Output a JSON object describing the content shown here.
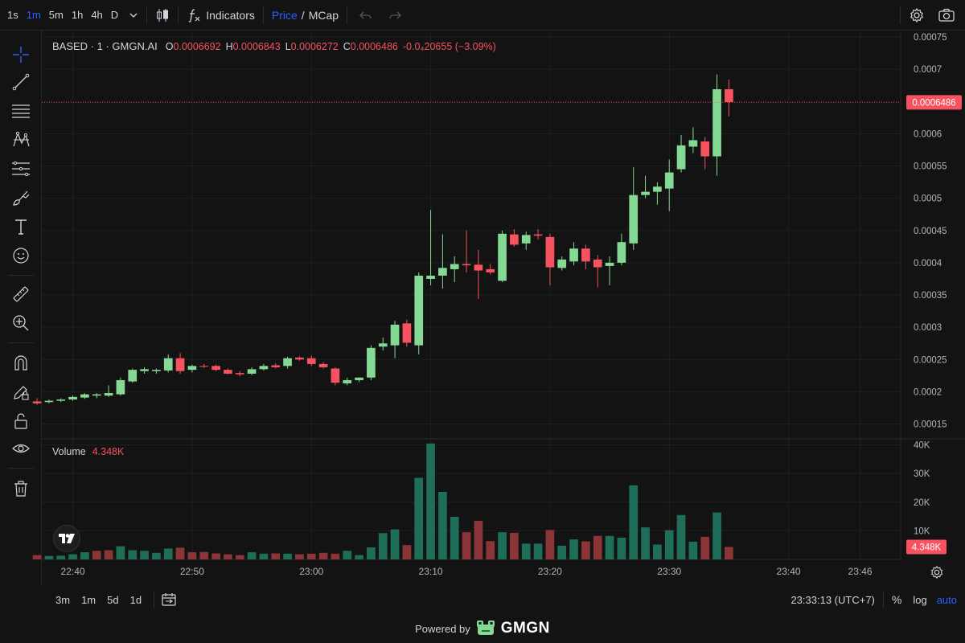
{
  "toolbar": {
    "timeframes": [
      "1s",
      "1m",
      "5m",
      "1h",
      "4h",
      "D"
    ],
    "active_timeframe": "1m",
    "indicators_label": "Indicators",
    "price_label": "Price",
    "slash": "/",
    "mcap_label": "MCap"
  },
  "legend": {
    "symbol": "BASED · 1 · GMGN.AI",
    "o_key": "O",
    "o_val": "0.0006692",
    "h_key": "H",
    "h_val": "0.0006843",
    "l_key": "L",
    "l_val": "0.0006272",
    "c_key": "C",
    "c_val": "0.0006486",
    "change": "-0.0₄20655 (−3.09%)"
  },
  "volume_legend": {
    "label": "Volume",
    "value": "4.348K"
  },
  "bottom": {
    "ranges": [
      "3m",
      "1m",
      "5d",
      "1d"
    ],
    "clock": "23:33:13 (UTC+7)",
    "percent": "%",
    "log": "log",
    "auto": "auto"
  },
  "footer": {
    "powered": "Powered by",
    "brand": "GMGN"
  },
  "colors": {
    "up": "#84d994",
    "down": "#f7525f",
    "vol_up": "#1e6e5a",
    "vol_down": "#8c3538",
    "accent": "#2962ff",
    "bg": "#131313"
  },
  "chart_data": {
    "type": "candlestick",
    "price_axis": {
      "ticks": [
        "0.00075",
        "0.0007",
        "0.00065",
        "0.0006",
        "0.00055",
        "0.0005",
        "0.00045",
        "0.0004",
        "0.00035",
        "0.0003",
        "0.00025",
        "0.0002",
        "0.00015"
      ],
      "tick_values": [
        0.00075,
        0.0007,
        0.00065,
        0.0006,
        0.00055,
        0.0005,
        0.00045,
        0.0004,
        0.00035,
        0.0003,
        0.00025,
        0.0002,
        0.00015
      ],
      "range": [
        0.000127,
        0.00076
      ],
      "last_price_label": "0.0006486",
      "last_price": 0.0006486
    },
    "volume_axis": {
      "ticks": [
        "40K",
        "30K",
        "20K",
        "10K"
      ],
      "tick_values": [
        40000,
        30000,
        20000,
        10000
      ],
      "range": [
        0,
        41000
      ],
      "last_volume_label": "4.348K",
      "last_volume": 4348
    },
    "time_axis": {
      "ticks": [
        "22:40",
        "22:50",
        "23:00",
        "23:10",
        "23:20",
        "23:30",
        "23:40",
        "23:46"
      ],
      "tick_minutes": [
        1360,
        1370,
        1380,
        1390,
        1400,
        1410,
        1420,
        1426
      ],
      "range": [
        1357.4,
        1429.4
      ]
    },
    "candles": [
      {
        "t": 1357,
        "o": 0.000185,
        "h": 0.00019,
        "l": 0.00018,
        "c": 0.000182
      },
      {
        "t": 1358,
        "o": 0.000184,
        "h": 0.000188,
        "l": 0.000182,
        "c": 0.000186
      },
      {
        "t": 1359,
        "o": 0.000186,
        "h": 0.00019,
        "l": 0.000184,
        "c": 0.000188
      },
      {
        "t": 1360,
        "o": 0.000188,
        "h": 0.000194,
        "l": 0.000186,
        "c": 0.000192
      },
      {
        "t": 1361,
        "o": 0.000191,
        "h": 0.000198,
        "l": 0.000189,
        "c": 0.000196
      },
      {
        "t": 1362,
        "o": 0.000194,
        "h": 0.000198,
        "l": 0.00019,
        "c": 0.000196
      },
      {
        "t": 1363,
        "o": 0.000194,
        "h": 0.00021,
        "l": 0.000192,
        "c": 0.000198
      },
      {
        "t": 1364,
        "o": 0.000196,
        "h": 0.000222,
        "l": 0.000194,
        "c": 0.000218
      },
      {
        "t": 1365,
        "o": 0.000216,
        "h": 0.000236,
        "l": 0.000214,
        "c": 0.000234
      },
      {
        "t": 1366,
        "o": 0.000232,
        "h": 0.000238,
        "l": 0.000228,
        "c": 0.000235
      },
      {
        "t": 1367,
        "o": 0.000232,
        "h": 0.000236,
        "l": 0.000228,
        "c": 0.000234
      },
      {
        "t": 1368,
        "o": 0.000233,
        "h": 0.000258,
        "l": 0.00023,
        "c": 0.000252
      },
      {
        "t": 1369,
        "o": 0.000252,
        "h": 0.00026,
        "l": 0.000228,
        "c": 0.000232
      },
      {
        "t": 1370,
        "o": 0.000234,
        "h": 0.000242,
        "l": 0.00023,
        "c": 0.00024
      },
      {
        "t": 1371,
        "o": 0.00024,
        "h": 0.000243,
        "l": 0.000237,
        "c": 0.000239
      },
      {
        "t": 1372,
        "o": 0.00024,
        "h": 0.000242,
        "l": 0.000232,
        "c": 0.000234
      },
      {
        "t": 1373,
        "o": 0.000234,
        "h": 0.000236,
        "l": 0.000227,
        "c": 0.000228
      },
      {
        "t": 1374,
        "o": 0.000229,
        "h": 0.000232,
        "l": 0.000224,
        "c": 0.000227
      },
      {
        "t": 1375,
        "o": 0.000228,
        "h": 0.000238,
        "l": 0.000226,
        "c": 0.000235
      },
      {
        "t": 1376,
        "o": 0.000235,
        "h": 0.000243,
        "l": 0.000233,
        "c": 0.00024
      },
      {
        "t": 1377,
        "o": 0.000241,
        "h": 0.000244,
        "l": 0.000236,
        "c": 0.000238
      },
      {
        "t": 1378,
        "o": 0.00024,
        "h": 0.000254,
        "l": 0.000236,
        "c": 0.000252
      },
      {
        "t": 1379,
        "o": 0.000253,
        "h": 0.000255,
        "l": 0.000248,
        "c": 0.00025
      },
      {
        "t": 1380,
        "o": 0.000252,
        "h": 0.000256,
        "l": 0.00024,
        "c": 0.000243
      },
      {
        "t": 1381,
        "o": 0.000243,
        "h": 0.000246,
        "l": 0.000236,
        "c": 0.000238
      },
      {
        "t": 1382,
        "o": 0.000236,
        "h": 0.000238,
        "l": 0.00021,
        "c": 0.000214
      },
      {
        "t": 1383,
        "o": 0.000213,
        "h": 0.000222,
        "l": 0.00021,
        "c": 0.000218
      },
      {
        "t": 1384,
        "o": 0.000218,
        "h": 0.000222,
        "l": 0.000215,
        "c": 0.000222
      },
      {
        "t": 1385,
        "o": 0.000222,
        "h": 0.000272,
        "l": 0.000218,
        "c": 0.000268
      },
      {
        "t": 1386,
        "o": 0.00027,
        "h": 0.000284,
        "l": 0.000264,
        "c": 0.000275
      },
      {
        "t": 1387,
        "o": 0.000272,
        "h": 0.00031,
        "l": 0.000252,
        "c": 0.000304
      },
      {
        "t": 1388,
        "o": 0.000306,
        "h": 0.000312,
        "l": 0.00027,
        "c": 0.000276
      },
      {
        "t": 1389,
        "o": 0.000272,
        "h": 0.000385,
        "l": 0.000258,
        "c": 0.00038
      },
      {
        "t": 1390,
        "o": 0.000375,
        "h": 0.000482,
        "l": 0.000365,
        "c": 0.00038
      },
      {
        "t": 1391,
        "o": 0.00038,
        "h": 0.000444,
        "l": 0.00036,
        "c": 0.000392
      },
      {
        "t": 1392,
        "o": 0.00039,
        "h": 0.00041,
        "l": 0.00037,
        "c": 0.000398
      },
      {
        "t": 1393,
        "o": 0.000398,
        "h": 0.00045,
        "l": 0.000385,
        "c": 0.000396
      },
      {
        "t": 1394,
        "o": 0.000397,
        "h": 0.00042,
        "l": 0.000344,
        "c": 0.000388
      },
      {
        "t": 1395,
        "o": 0.00039,
        "h": 0.000398,
        "l": 0.000382,
        "c": 0.000385
      },
      {
        "t": 1396,
        "o": 0.000372,
        "h": 0.00045,
        "l": 0.00037,
        "c": 0.000445
      },
      {
        "t": 1397,
        "o": 0.000444,
        "h": 0.000452,
        "l": 0.000425,
        "c": 0.000428
      },
      {
        "t": 1398,
        "o": 0.00043,
        "h": 0.000448,
        "l": 0.00042,
        "c": 0.000443
      },
      {
        "t": 1399,
        "o": 0.000444,
        "h": 0.000452,
        "l": 0.000436,
        "c": 0.000442
      },
      {
        "t": 1400,
        "o": 0.00044,
        "h": 0.000445,
        "l": 0.000365,
        "c": 0.000393
      },
      {
        "t": 1401,
        "o": 0.000392,
        "h": 0.00041,
        "l": 0.000388,
        "c": 0.000405
      },
      {
        "t": 1402,
        "o": 0.000402,
        "h": 0.000432,
        "l": 0.000396,
        "c": 0.000422
      },
      {
        "t": 1403,
        "o": 0.000422,
        "h": 0.000428,
        "l": 0.00039,
        "c": 0.000402
      },
      {
        "t": 1404,
        "o": 0.000405,
        "h": 0.000412,
        "l": 0.000362,
        "c": 0.000393
      },
      {
        "t": 1405,
        "o": 0.000395,
        "h": 0.00041,
        "l": 0.000365,
        "c": 0.0004
      },
      {
        "t": 1406,
        "o": 0.0004,
        "h": 0.000445,
        "l": 0.000396,
        "c": 0.000432
      },
      {
        "t": 1407,
        "o": 0.00043,
        "h": 0.000548,
        "l": 0.00042,
        "c": 0.000505
      },
      {
        "t": 1408,
        "o": 0.000505,
        "h": 0.000535,
        "l": 0.0005,
        "c": 0.00051
      },
      {
        "t": 1409,
        "o": 0.00051,
        "h": 0.000525,
        "l": 0.00049,
        "c": 0.000518
      },
      {
        "t": 1410,
        "o": 0.000515,
        "h": 0.00056,
        "l": 0.00048,
        "c": 0.00054
      },
      {
        "t": 1411,
        "o": 0.000545,
        "h": 0.000598,
        "l": 0.00054,
        "c": 0.000582
      },
      {
        "t": 1412,
        "o": 0.00058,
        "h": 0.00061,
        "l": 0.00057,
        "c": 0.00059
      },
      {
        "t": 1413,
        "o": 0.000588,
        "h": 0.000595,
        "l": 0.000545,
        "c": 0.000565
      },
      {
        "t": 1414,
        "o": 0.000565,
        "h": 0.000692,
        "l": 0.000535,
        "c": 0.000669
      },
      {
        "t": 1415,
        "o": 0.000669,
        "h": 0.000684,
        "l": 0.000627,
        "c": 0.000649
      }
    ],
    "volumes": [
      {
        "t": 1357,
        "v": 1500,
        "up": false
      },
      {
        "t": 1358,
        "v": 1200,
        "up": true
      },
      {
        "t": 1359,
        "v": 1300,
        "up": true
      },
      {
        "t": 1360,
        "v": 1800,
        "up": true
      },
      {
        "t": 1361,
        "v": 2500,
        "up": true
      },
      {
        "t": 1362,
        "v": 3000,
        "up": false
      },
      {
        "t": 1363,
        "v": 3200,
        "up": false
      },
      {
        "t": 1364,
        "v": 4600,
        "up": true
      },
      {
        "t": 1365,
        "v": 3200,
        "up": true
      },
      {
        "t": 1366,
        "v": 3000,
        "up": true
      },
      {
        "t": 1367,
        "v": 2300,
        "up": true
      },
      {
        "t": 1368,
        "v": 3800,
        "up": true
      },
      {
        "t": 1369,
        "v": 4100,
        "up": false
      },
      {
        "t": 1370,
        "v": 2500,
        "up": false
      },
      {
        "t": 1371,
        "v": 2600,
        "up": false
      },
      {
        "t": 1372,
        "v": 2100,
        "up": false
      },
      {
        "t": 1373,
        "v": 1800,
        "up": false
      },
      {
        "t": 1374,
        "v": 1500,
        "up": false
      },
      {
        "t": 1375,
        "v": 2500,
        "up": true
      },
      {
        "t": 1376,
        "v": 2000,
        "up": true
      },
      {
        "t": 1377,
        "v": 2100,
        "up": false
      },
      {
        "t": 1378,
        "v": 2000,
        "up": true
      },
      {
        "t": 1379,
        "v": 1800,
        "up": false
      },
      {
        "t": 1380,
        "v": 2000,
        "up": false
      },
      {
        "t": 1381,
        "v": 2300,
        "up": false
      },
      {
        "t": 1382,
        "v": 2000,
        "up": false
      },
      {
        "t": 1383,
        "v": 3000,
        "up": true
      },
      {
        "t": 1384,
        "v": 1500,
        "up": true
      },
      {
        "t": 1385,
        "v": 4200,
        "up": true
      },
      {
        "t": 1386,
        "v": 9200,
        "up": true
      },
      {
        "t": 1387,
        "v": 10500,
        "up": true
      },
      {
        "t": 1388,
        "v": 5000,
        "up": false
      },
      {
        "t": 1389,
        "v": 28500,
        "up": true
      },
      {
        "t": 1390,
        "v": 40500,
        "up": true
      },
      {
        "t": 1391,
        "v": 23600,
        "up": true
      },
      {
        "t": 1392,
        "v": 14900,
        "up": true
      },
      {
        "t": 1393,
        "v": 9500,
        "up": false
      },
      {
        "t": 1394,
        "v": 13500,
        "up": false
      },
      {
        "t": 1395,
        "v": 6400,
        "up": false
      },
      {
        "t": 1396,
        "v": 9500,
        "up": true
      },
      {
        "t": 1397,
        "v": 9300,
        "up": false
      },
      {
        "t": 1398,
        "v": 5500,
        "up": true
      },
      {
        "t": 1399,
        "v": 5500,
        "up": true
      },
      {
        "t": 1400,
        "v": 10300,
        "up": false
      },
      {
        "t": 1401,
        "v": 4800,
        "up": true
      },
      {
        "t": 1402,
        "v": 7000,
        "up": true
      },
      {
        "t": 1403,
        "v": 6300,
        "up": false
      },
      {
        "t": 1404,
        "v": 8200,
        "up": false
      },
      {
        "t": 1405,
        "v": 8200,
        "up": true
      },
      {
        "t": 1406,
        "v": 7600,
        "up": true
      },
      {
        "t": 1407,
        "v": 25900,
        "up": true
      },
      {
        "t": 1408,
        "v": 11200,
        "up": true
      },
      {
        "t": 1409,
        "v": 5200,
        "up": true
      },
      {
        "t": 1410,
        "v": 10200,
        "up": true
      },
      {
        "t": 1411,
        "v": 15500,
        "up": true
      },
      {
        "t": 1412,
        "v": 6200,
        "up": true
      },
      {
        "t": 1413,
        "v": 7900,
        "up": false
      },
      {
        "t": 1414,
        "v": 16400,
        "up": true
      },
      {
        "t": 1415,
        "v": 4348,
        "up": false
      }
    ]
  }
}
